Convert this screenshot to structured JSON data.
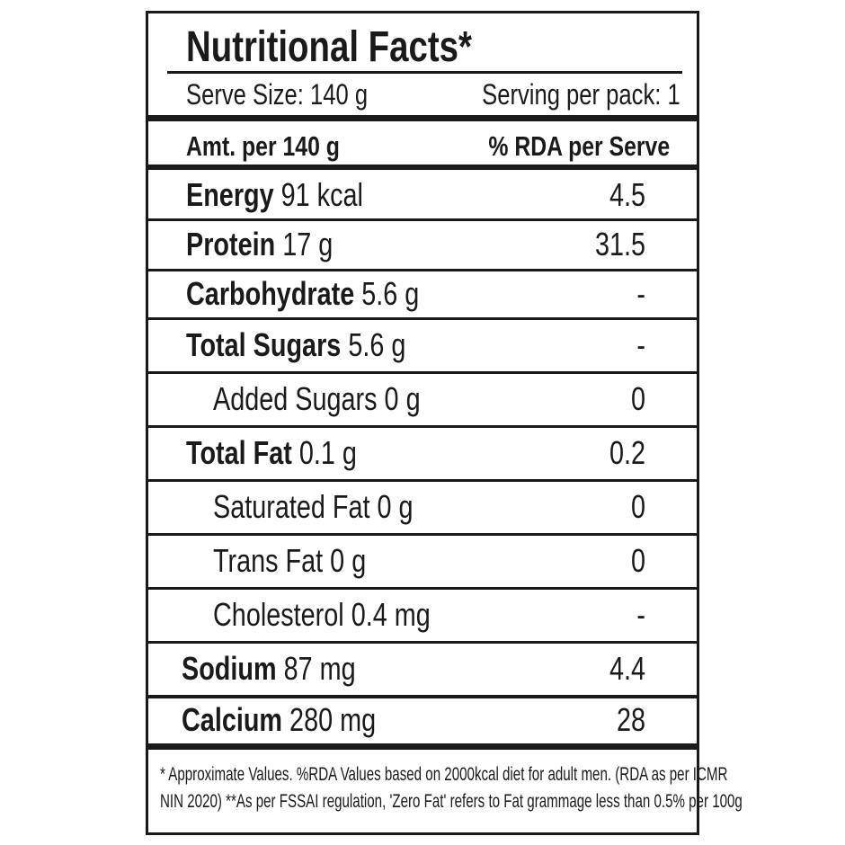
{
  "title": "Nutritional Facts*",
  "serve_size": "Serve Size: 140 g",
  "servings_per_pack": "Serving per pack: 1",
  "header": {
    "amount": "Amt. per 140 g",
    "rda": "% RDA per Serve"
  },
  "rows": [
    {
      "name": "Energy",
      "amount": "91 kcal",
      "rda": "4.5",
      "bold": true
    },
    {
      "name": "Protein",
      "amount": "17 g",
      "rda": "31.5",
      "bold": true
    },
    {
      "name": "Carbohydrate",
      "amount": "5.6 g",
      "rda": "-",
      "bold": true
    },
    {
      "name": "Total Sugars",
      "amount": "5.6 g",
      "rda": "-",
      "bold": true
    },
    {
      "name": "Added Sugars",
      "amount": "0 g",
      "rda": "0",
      "bold": false
    },
    {
      "name": "Total Fat",
      "amount": "0.1 g",
      "rda": "0.2",
      "bold": true
    },
    {
      "name": "Saturated Fat",
      "amount": "0 g",
      "rda": "0",
      "bold": false
    },
    {
      "name": "Trans Fat",
      "amount": "0 g",
      "rda": "0",
      "bold": false
    },
    {
      "name": "Cholesterol",
      "amount": "0.4 mg",
      "rda": "-",
      "bold": false
    },
    {
      "name": "Sodium",
      "amount": "87 mg",
      "rda": "4.4",
      "bold": true
    },
    {
      "name": "Calcium",
      "amount": "280 mg",
      "rda": "28",
      "bold": true
    }
  ],
  "footnote": {
    "line1": "* Approximate Values. %RDA Values based on 2000kcal diet for adult men. (RDA as per ICMR",
    "line2": "NIN 2020) **As per FSSAI regulation, 'Zero Fat' refers to Fat grammage less than 0.5% per 100g"
  }
}
